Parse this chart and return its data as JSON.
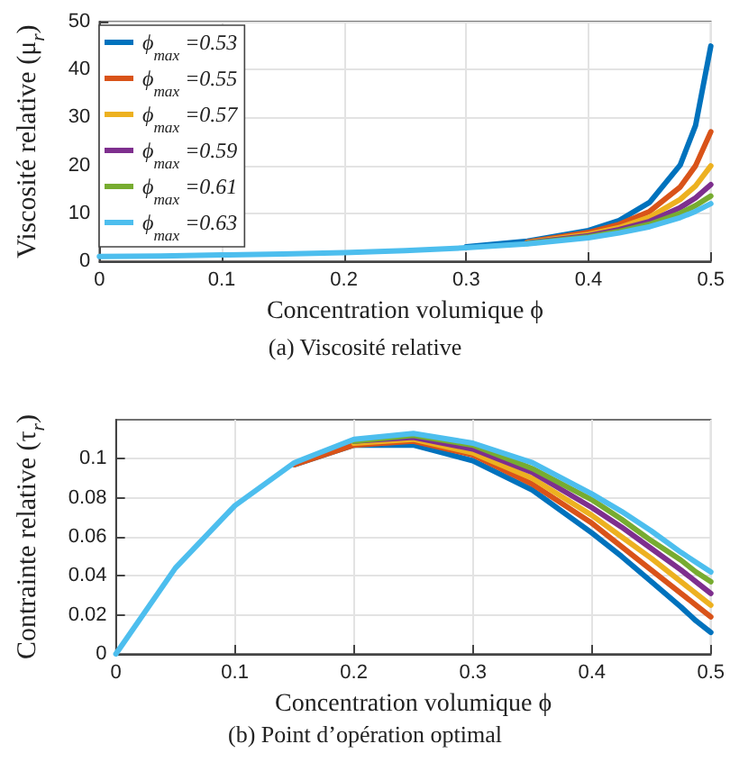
{
  "chart_data": [
    {
      "type": "line",
      "title": "(a) Viscosité relative",
      "xlabel": "Concentration volumique ϕ",
      "ylabel": "Viscosité relative (μ$_{r}$)",
      "x": [
        0,
        0.05,
        0.1,
        0.15,
        0.2,
        0.25,
        0.3,
        0.35,
        0.4,
        0.425,
        0.45,
        0.475,
        0.4875,
        0.5
      ],
      "series": [
        {
          "name": "ϕ$_{max}$ =0.53",
          "color": "#0072bd",
          "values": [
            null,
            null,
            null,
            null,
            null,
            null,
            3.0,
            4.2,
            6.4,
            8.5,
            12.3,
            20.1,
            28.3,
            44.9
          ]
        },
        {
          "name": "ϕ$_{max}$ =0.55",
          "color": "#d95319",
          "values": [
            null,
            null,
            null,
            null,
            null,
            null,
            null,
            4.0,
            6.0,
            7.7,
            10.4,
            15.5,
            19.9,
            27.0
          ]
        },
        {
          "name": "ϕ$_{max}$ =0.57",
          "color": "#edb120",
          "values": [
            null,
            null,
            null,
            null,
            null,
            null,
            null,
            3.9,
            5.6,
            7.0,
            9.2,
            12.9,
            15.7,
            19.9
          ]
        },
        {
          "name": "ϕ$_{max}$ =0.59",
          "color": "#7e2f8e",
          "values": [
            null,
            null,
            null,
            null,
            null,
            null,
            null,
            3.8,
            5.3,
            6.6,
            8.3,
            11.2,
            13.2,
            16.0
          ]
        },
        {
          "name": "ϕ$_{max}$ =0.61",
          "color": "#77ac30",
          "values": [
            null,
            null,
            null,
            null,
            null,
            null,
            null,
            3.7,
            5.1,
            6.2,
            7.7,
            10.0,
            11.6,
            13.6
          ]
        },
        {
          "name": "ϕ$_{max}$ =0.63",
          "color": "#4dbeee",
          "values": [
            1,
            1.1,
            1.3,
            1.5,
            1.8,
            2.2,
            2.8,
            3.6,
            4.9,
            5.9,
            7.2,
            9.1,
            10.4,
            12.0
          ]
        }
      ],
      "xlim": [
        0,
        0.5
      ],
      "xticks": [
        0,
        0.1,
        0.2,
        0.3,
        0.4,
        0.5
      ],
      "ylim": [
        0,
        50
      ],
      "yticks": [
        0,
        10,
        20,
        30,
        40,
        50
      ],
      "grid": true,
      "legend": "top left",
      "marker": "none",
      "line_style": "solid"
    },
    {
      "type": "line",
      "title": "(b) Point d’opération optimal",
      "xlabel": "Concentration volumique ϕ",
      "ylabel": "Contrainte relative (τ$_{r}$)",
      "x": [
        0,
        0.05,
        0.1,
        0.15,
        0.2,
        0.25,
        0.3,
        0.35,
        0.4,
        0.425,
        0.45,
        0.475,
        0.4875,
        0.5
      ],
      "series": [
        {
          "color": "#0072bd",
          "values": [
            null,
            null,
            null,
            0.097,
            0.107,
            0.107,
            0.099,
            0.084,
            0.062,
            0.05,
            0.037,
            0.024,
            0.017,
            0.011
          ]
        },
        {
          "color": "#d95319",
          "values": [
            null,
            null,
            null,
            0.097,
            0.107,
            0.109,
            0.102,
            0.087,
            0.067,
            0.055,
            0.043,
            0.031,
            0.025,
            0.019
          ]
        },
        {
          "color": "#edb120",
          "values": [
            null,
            null,
            null,
            null,
            0.108,
            0.11,
            0.103,
            0.09,
            0.071,
            0.06,
            0.049,
            0.037,
            0.031,
            0.025
          ]
        },
        {
          "color": "#7e2f8e",
          "values": [
            null,
            null,
            null,
            null,
            0.109,
            0.111,
            0.105,
            0.093,
            0.075,
            0.065,
            0.054,
            0.043,
            0.037,
            0.031
          ]
        },
        {
          "color": "#77ac30",
          "values": [
            null,
            null,
            null,
            null,
            0.109,
            0.112,
            0.107,
            0.095,
            0.079,
            0.069,
            0.058,
            0.048,
            0.042,
            0.037
          ]
        },
        {
          "color": "#4dbeee",
          "values": [
            0,
            0.044,
            0.076,
            0.098,
            0.11,
            0.113,
            0.108,
            0.098,
            0.082,
            0.073,
            0.063,
            0.052,
            0.047,
            0.042
          ]
        }
      ],
      "xlim": [
        0,
        0.5
      ],
      "xticks": [
        0,
        0.1,
        0.2,
        0.3,
        0.4,
        0.5
      ],
      "ylim": [
        0,
        0.12
      ],
      "yticks": [
        0,
        0.02,
        0.04,
        0.06,
        0.08,
        0.1
      ],
      "grid": true,
      "legend": false,
      "marker": "none",
      "line_style": "solid"
    }
  ]
}
